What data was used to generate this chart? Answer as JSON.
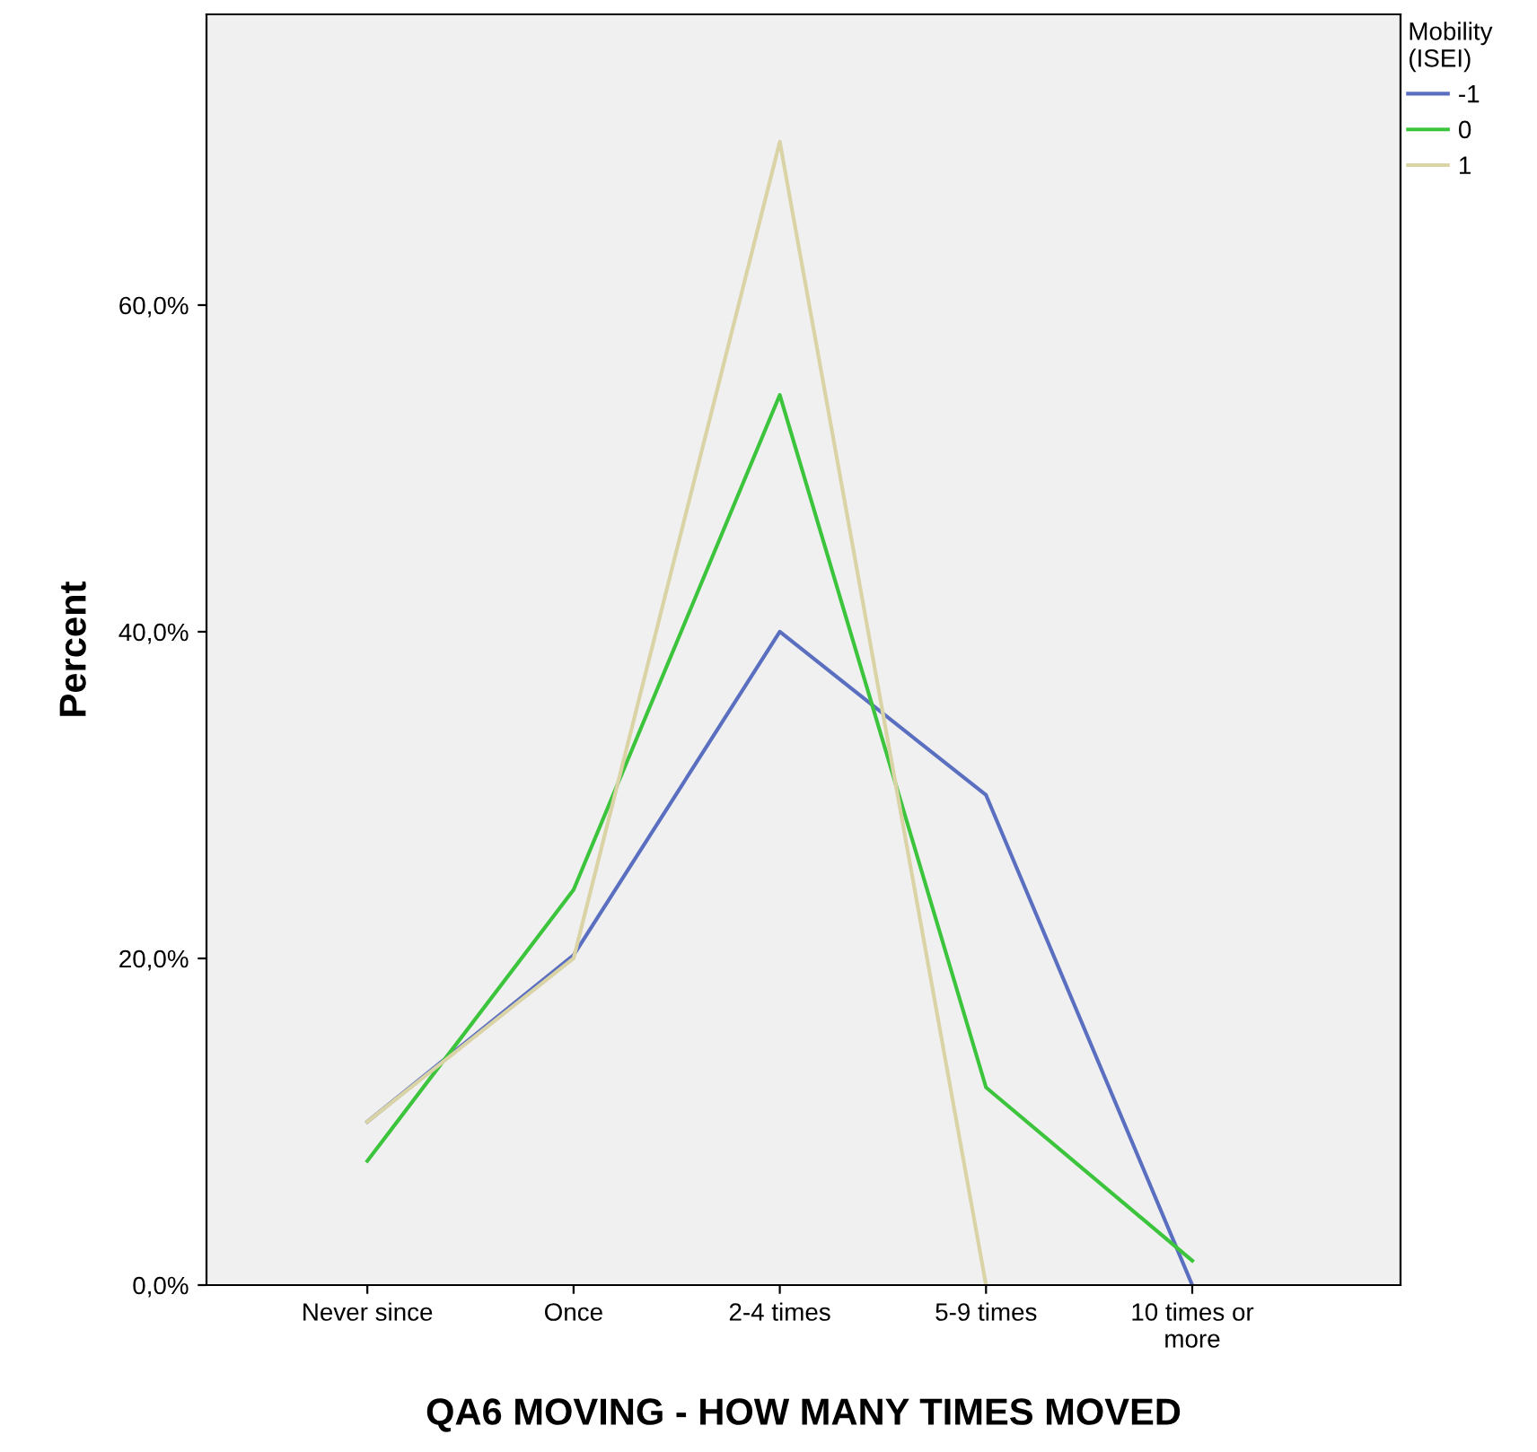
{
  "chart_data": {
    "type": "line",
    "xlabel": "QA6 MOVING - HOW MANY TIMES MOVED",
    "ylabel": "Percent",
    "legend_title": "Mobility\n(ISEI)",
    "legend": "top right",
    "categories": [
      "Never since",
      "Once",
      "2-4 times",
      "5-9 times",
      "10 times or\nmore"
    ],
    "series": [
      {
        "name": "-1",
        "color": "#5b6fc0",
        "values": [
          10.0,
          20.2,
          40.0,
          30.0,
          0.0
        ]
      },
      {
        "name": "0",
        "color": "#3cc43c",
        "values": [
          7.6,
          24.2,
          54.5,
          12.1,
          1.5
        ]
      },
      {
        "name": "1",
        "color": "#d9d3a6",
        "values": [
          10.0,
          20.0,
          70.0,
          0.0,
          null
        ]
      }
    ],
    "ylim": [
      0,
      77.8
    ],
    "yticks": [
      {
        "value": 0,
        "label": "0,0%"
      },
      {
        "value": 20,
        "label": "20,0%"
      },
      {
        "value": 40,
        "label": "40,0%"
      },
      {
        "value": 60,
        "label": "60,0%"
      }
    ],
    "grid": false,
    "marker": "none",
    "line_style": "solid"
  }
}
